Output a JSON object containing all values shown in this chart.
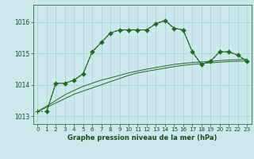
{
  "title": "Graphe pression niveau de la mer (hPa)",
  "background_color": "#cce8ec",
  "grid_color": "#aacdd4",
  "line_color": "#1e6b1e",
  "xlim": [
    -0.5,
    23.5
  ],
  "ylim": [
    1012.75,
    1016.55
  ],
  "yticks": [
    1013,
    1014,
    1015,
    1016
  ],
  "ytick_labels": [
    "1013",
    "1014",
    "1015",
    "1016"
  ],
  "xticks": [
    0,
    1,
    2,
    3,
    4,
    5,
    6,
    7,
    8,
    9,
    10,
    11,
    12,
    13,
    14,
    15,
    16,
    17,
    18,
    19,
    20,
    21,
    22,
    23
  ],
  "series_dotted": {
    "x": [
      0,
      1,
      2,
      3,
      4,
      5,
      6,
      7,
      8,
      9,
      10,
      11,
      12,
      13,
      14,
      15,
      16,
      17,
      18,
      19,
      20,
      21,
      22,
      23
    ],
    "y": [
      1013.15,
      1013.15,
      1014.05,
      1014.05,
      1014.15,
      1014.35,
      1015.05,
      1015.35,
      1015.65,
      1015.75,
      1015.75,
      1015.75,
      1015.75,
      1015.95,
      1016.05,
      1015.8,
      1015.75,
      1015.05,
      1014.65,
      1014.75,
      1015.05,
      1015.05,
      1014.95,
      1014.75
    ]
  },
  "series_solid_marker": {
    "x": [
      1,
      2,
      3,
      4,
      5,
      6,
      7,
      8,
      9,
      10,
      11,
      12,
      13,
      14,
      15,
      16,
      17,
      18,
      19,
      20,
      21,
      22,
      23
    ],
    "y": [
      1013.15,
      1014.05,
      1014.05,
      1014.15,
      1014.35,
      1015.05,
      1015.35,
      1015.65,
      1015.75,
      1015.75,
      1015.75,
      1015.75,
      1015.95,
      1016.05,
      1015.8,
      1015.75,
      1015.05,
      1014.65,
      1014.75,
      1015.05,
      1015.05,
      1014.95,
      1014.75
    ]
  },
  "series_trend1": {
    "x": [
      0,
      1,
      2,
      3,
      4,
      5,
      6,
      7,
      8,
      9,
      10,
      11,
      12,
      13,
      14,
      15,
      16,
      17,
      18,
      19,
      20,
      21,
      22,
      23
    ],
    "y": [
      1013.15,
      1013.28,
      1013.42,
      1013.56,
      1013.7,
      1013.8,
      1013.9,
      1014.0,
      1014.1,
      1014.2,
      1014.3,
      1014.38,
      1014.43,
      1014.48,
      1014.53,
      1014.58,
      1014.62,
      1014.65,
      1014.68,
      1014.7,
      1014.72,
      1014.74,
      1014.75,
      1014.76
    ]
  },
  "series_trend2": {
    "x": [
      0,
      1,
      2,
      3,
      4,
      5,
      6,
      7,
      8,
      9,
      10,
      11,
      12,
      13,
      14,
      15,
      16,
      17,
      18,
      19,
      20,
      21,
      22,
      23
    ],
    "y": [
      1013.15,
      1013.32,
      1013.5,
      1013.68,
      1013.82,
      1013.95,
      1014.05,
      1014.15,
      1014.22,
      1014.3,
      1014.38,
      1014.44,
      1014.5,
      1014.55,
      1014.6,
      1014.65,
      1014.68,
      1014.71,
      1014.73,
      1014.75,
      1014.77,
      1014.79,
      1014.8,
      1014.82
    ]
  }
}
